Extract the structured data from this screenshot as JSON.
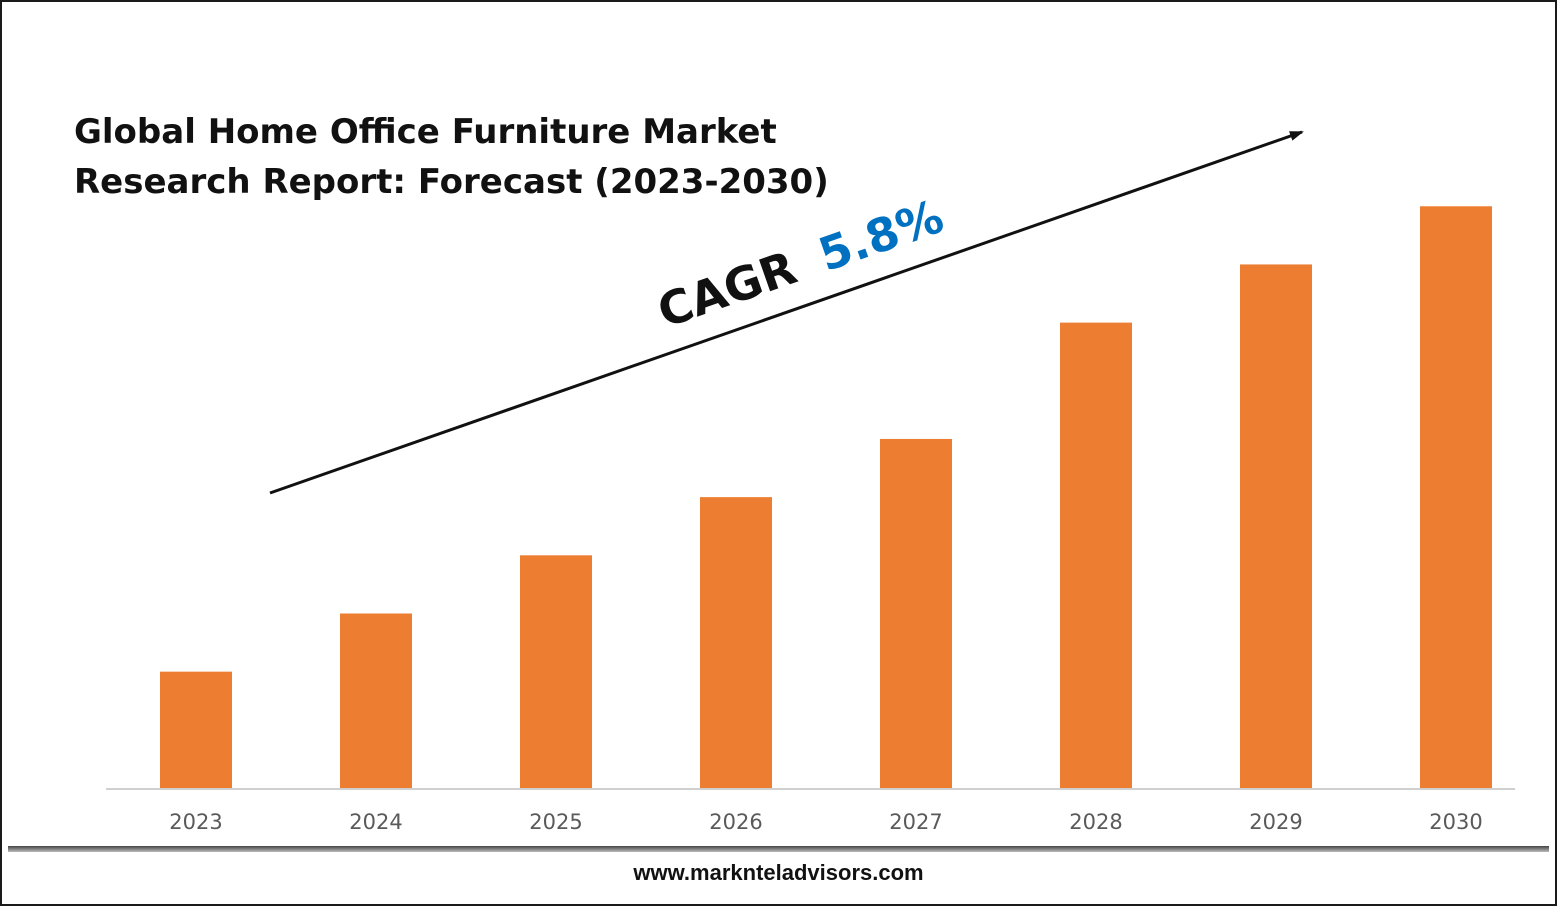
{
  "chart_data": {
    "type": "bar",
    "title_lines": [
      "Global Home Office Furniture Market",
      "Research Report: Forecast (2023-2030)"
    ],
    "categories": [
      "2023",
      "2024",
      "2025",
      "2026",
      "2027",
      "2028",
      "2029",
      "2030"
    ],
    "values": [
      1.0,
      1.5,
      2.0,
      2.5,
      3.0,
      4.0,
      4.5,
      5.0
    ],
    "ylim": [
      0,
      5.2
    ],
    "bar_color": "#ED7D31",
    "grid": false,
    "legend": "none",
    "annotation": {
      "label": "CAGR",
      "value": "5.8%",
      "label_color": "#111111",
      "value_color": "#0070C0"
    }
  },
  "footer": {
    "website": "www.marknteladvisors.com"
  }
}
